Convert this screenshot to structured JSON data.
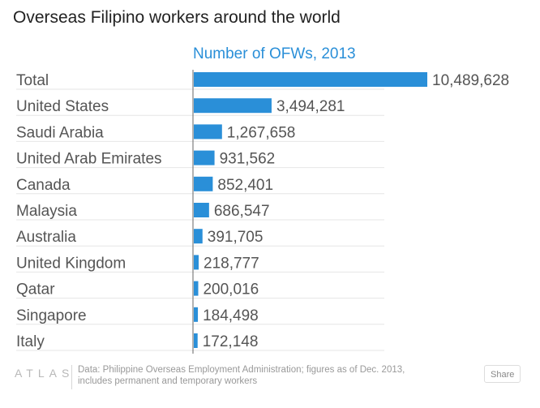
{
  "header": {
    "title": "Overseas Filipino workers around the world"
  },
  "chart_data": {
    "type": "bar",
    "orientation": "horizontal",
    "title": "Overseas Filipino workers around the world",
    "series_title": "Number of OFWs, 2013",
    "categories": [
      "Total",
      "United States",
      "Saudi Arabia",
      "United Arab Emirates",
      "Canada",
      "Malaysia",
      "Australia",
      "United Kingdom",
      "Qatar",
      "Singapore",
      "Italy"
    ],
    "values": [
      10489628,
      3494281,
      1267658,
      931562,
      852401,
      686547,
      391705,
      218777,
      200016,
      184498,
      172148
    ],
    "value_labels": [
      "10,489,628",
      "3,494,281",
      "1,267,658",
      "931,562",
      "852,401",
      "686,547",
      "391,705",
      "218,777",
      "200,016",
      "184,498",
      "172,148"
    ],
    "xlim": [
      0,
      10489628
    ],
    "grid": true,
    "legend": "none",
    "bar_color": "#2a8fd8",
    "label_color": "#555555"
  },
  "footer": {
    "brand": "ATLAS",
    "source": "Data: Philippine Overseas Employment Administration; figures as of Dec. 2013, includes permanent and temporary workers",
    "share_label": "Share"
  }
}
